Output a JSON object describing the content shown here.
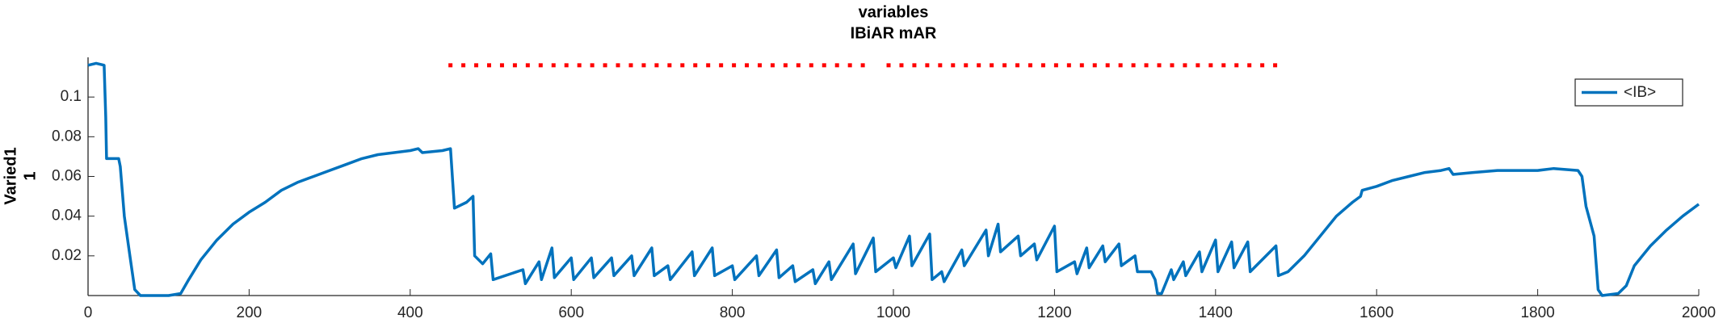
{
  "chart_data": {
    "type": "line",
    "title": "variables",
    "subtitle": "IBiAR mAR",
    "y_label": "Varied1",
    "y_label_2": "1",
    "xlim": [
      0,
      2000
    ],
    "xticks": [
      0,
      200,
      400,
      600,
      800,
      1000,
      1200,
      1400,
      1600,
      1800,
      2000
    ],
    "ylim": [
      0,
      0.12
    ],
    "yticks": [
      0.02,
      0.04,
      0.06,
      0.08,
      0.1
    ],
    "legend": "top-right",
    "series": [
      {
        "name": "<IB>",
        "color": "#0072bd",
        "x": [
          0,
          10,
          20,
          22,
          23,
          38,
          40,
          45,
          52,
          58,
          65,
          80,
          100,
          115,
          125,
          140,
          160,
          180,
          200,
          220,
          240,
          260,
          280,
          300,
          320,
          340,
          360,
          380,
          400,
          410,
          415,
          440,
          450,
          455,
          470,
          478,
          480,
          490,
          500,
          503,
          540,
          543,
          560,
          563,
          576,
          579,
          600,
          603,
          625,
          628,
          650,
          653,
          675,
          678,
          700,
          703,
          720,
          723,
          750,
          753,
          775,
          778,
          800,
          803,
          830,
          833,
          855,
          858,
          875,
          878,
          900,
          903,
          920,
          923,
          950,
          953,
          975,
          978,
          1000,
          1003,
          1020,
          1023,
          1045,
          1048,
          1060,
          1063,
          1085,
          1088,
          1115,
          1118,
          1130,
          1133,
          1155,
          1158,
          1175,
          1178,
          1200,
          1203,
          1225,
          1228,
          1240,
          1243,
          1260,
          1263,
          1280,
          1283,
          1300,
          1303,
          1320,
          1325,
          1328,
          1333,
          1345,
          1348,
          1360,
          1363,
          1380,
          1383,
          1400,
          1403,
          1420,
          1423,
          1440,
          1443,
          1475,
          1478,
          1490,
          1510,
          1530,
          1550,
          1570,
          1580,
          1582,
          1600,
          1620,
          1640,
          1660,
          1680,
          1690,
          1695,
          1720,
          1750,
          1780,
          1800,
          1820,
          1850,
          1855,
          1860,
          1870,
          1875,
          1880,
          1900,
          1910,
          1920,
          1940,
          1960,
          1980,
          2000
        ],
        "values": [
          0.116,
          0.117,
          0.116,
          0.09,
          0.069,
          0.069,
          0.065,
          0.04,
          0.02,
          0.003,
          0,
          0,
          0,
          0.001,
          0.008,
          0.018,
          0.028,
          0.036,
          0.042,
          0.047,
          0.053,
          0.057,
          0.06,
          0.063,
          0.066,
          0.069,
          0.071,
          0.072,
          0.073,
          0.074,
          0.072,
          0.073,
          0.074,
          0.044,
          0.047,
          0.05,
          0.02,
          0.016,
          0.021,
          0.008,
          0.013,
          0.006,
          0.017,
          0.008,
          0.024,
          0.009,
          0.019,
          0.008,
          0.019,
          0.009,
          0.019,
          0.01,
          0.02,
          0.01,
          0.024,
          0.01,
          0.015,
          0.008,
          0.022,
          0.01,
          0.024,
          0.01,
          0.015,
          0.008,
          0.02,
          0.01,
          0.023,
          0.009,
          0.015,
          0.007,
          0.013,
          0.006,
          0.017,
          0.008,
          0.026,
          0.011,
          0.029,
          0.012,
          0.019,
          0.014,
          0.03,
          0.015,
          0.031,
          0.008,
          0.012,
          0.007,
          0.023,
          0.015,
          0.033,
          0.02,
          0.036,
          0.022,
          0.03,
          0.02,
          0.026,
          0.018,
          0.035,
          0.012,
          0.017,
          0.011,
          0.024,
          0.014,
          0.025,
          0.017,
          0.026,
          0.015,
          0.02,
          0.012,
          0.012,
          0.008,
          0.001,
          0.001,
          0.013,
          0.008,
          0.017,
          0.01,
          0.022,
          0.012,
          0.028,
          0.012,
          0.027,
          0.014,
          0.027,
          0.012,
          0.025,
          0.01,
          0.012,
          0.02,
          0.03,
          0.04,
          0.047,
          0.05,
          0.053,
          0.055,
          0.058,
          0.06,
          0.062,
          0.063,
          0.064,
          0.061,
          0.062,
          0.063,
          0.063,
          0.063,
          0.064,
          0.063,
          0.06,
          0.045,
          0.03,
          0.003,
          0,
          0.001,
          0.005,
          0.015,
          0.025,
          0.033,
          0.04,
          0.046
        ]
      }
    ],
    "markers": {
      "color": "#ff0000",
      "x": [
        450,
        466,
        482,
        498,
        514,
        530,
        546,
        562,
        578,
        594,
        610,
        626,
        642,
        658,
        674,
        690,
        706,
        722,
        738,
        754,
        770,
        786,
        802,
        818,
        834,
        850,
        866,
        882,
        898,
        914,
        930,
        946,
        962,
        994,
        1010,
        1026,
        1042,
        1058,
        1074,
        1090,
        1106,
        1122,
        1138,
        1154,
        1170,
        1186,
        1202,
        1218,
        1234,
        1250,
        1266,
        1282,
        1298,
        1314,
        1330,
        1346,
        1362,
        1378,
        1394,
        1410,
        1426,
        1442,
        1458,
        1474
      ],
      "values": [
        0.116,
        0.116,
        0.116,
        0.116,
        0.116,
        0.116,
        0.116,
        0.116,
        0.116,
        0.116,
        0.116,
        0.116,
        0.116,
        0.116,
        0.116,
        0.116,
        0.116,
        0.116,
        0.116,
        0.116,
        0.116,
        0.116,
        0.116,
        0.116,
        0.116,
        0.116,
        0.116,
        0.116,
        0.116,
        0.116,
        0.116,
        0.116,
        0.116,
        0.116,
        0.116,
        0.116,
        0.116,
        0.116,
        0.116,
        0.116,
        0.116,
        0.116,
        0.116,
        0.116,
        0.116,
        0.116,
        0.116,
        0.116,
        0.116,
        0.116,
        0.116,
        0.116,
        0.116,
        0.116,
        0.116,
        0.116,
        0.116,
        0.116,
        0.116,
        0.116,
        0.116,
        0.116,
        0.116,
        0.116
      ]
    }
  }
}
